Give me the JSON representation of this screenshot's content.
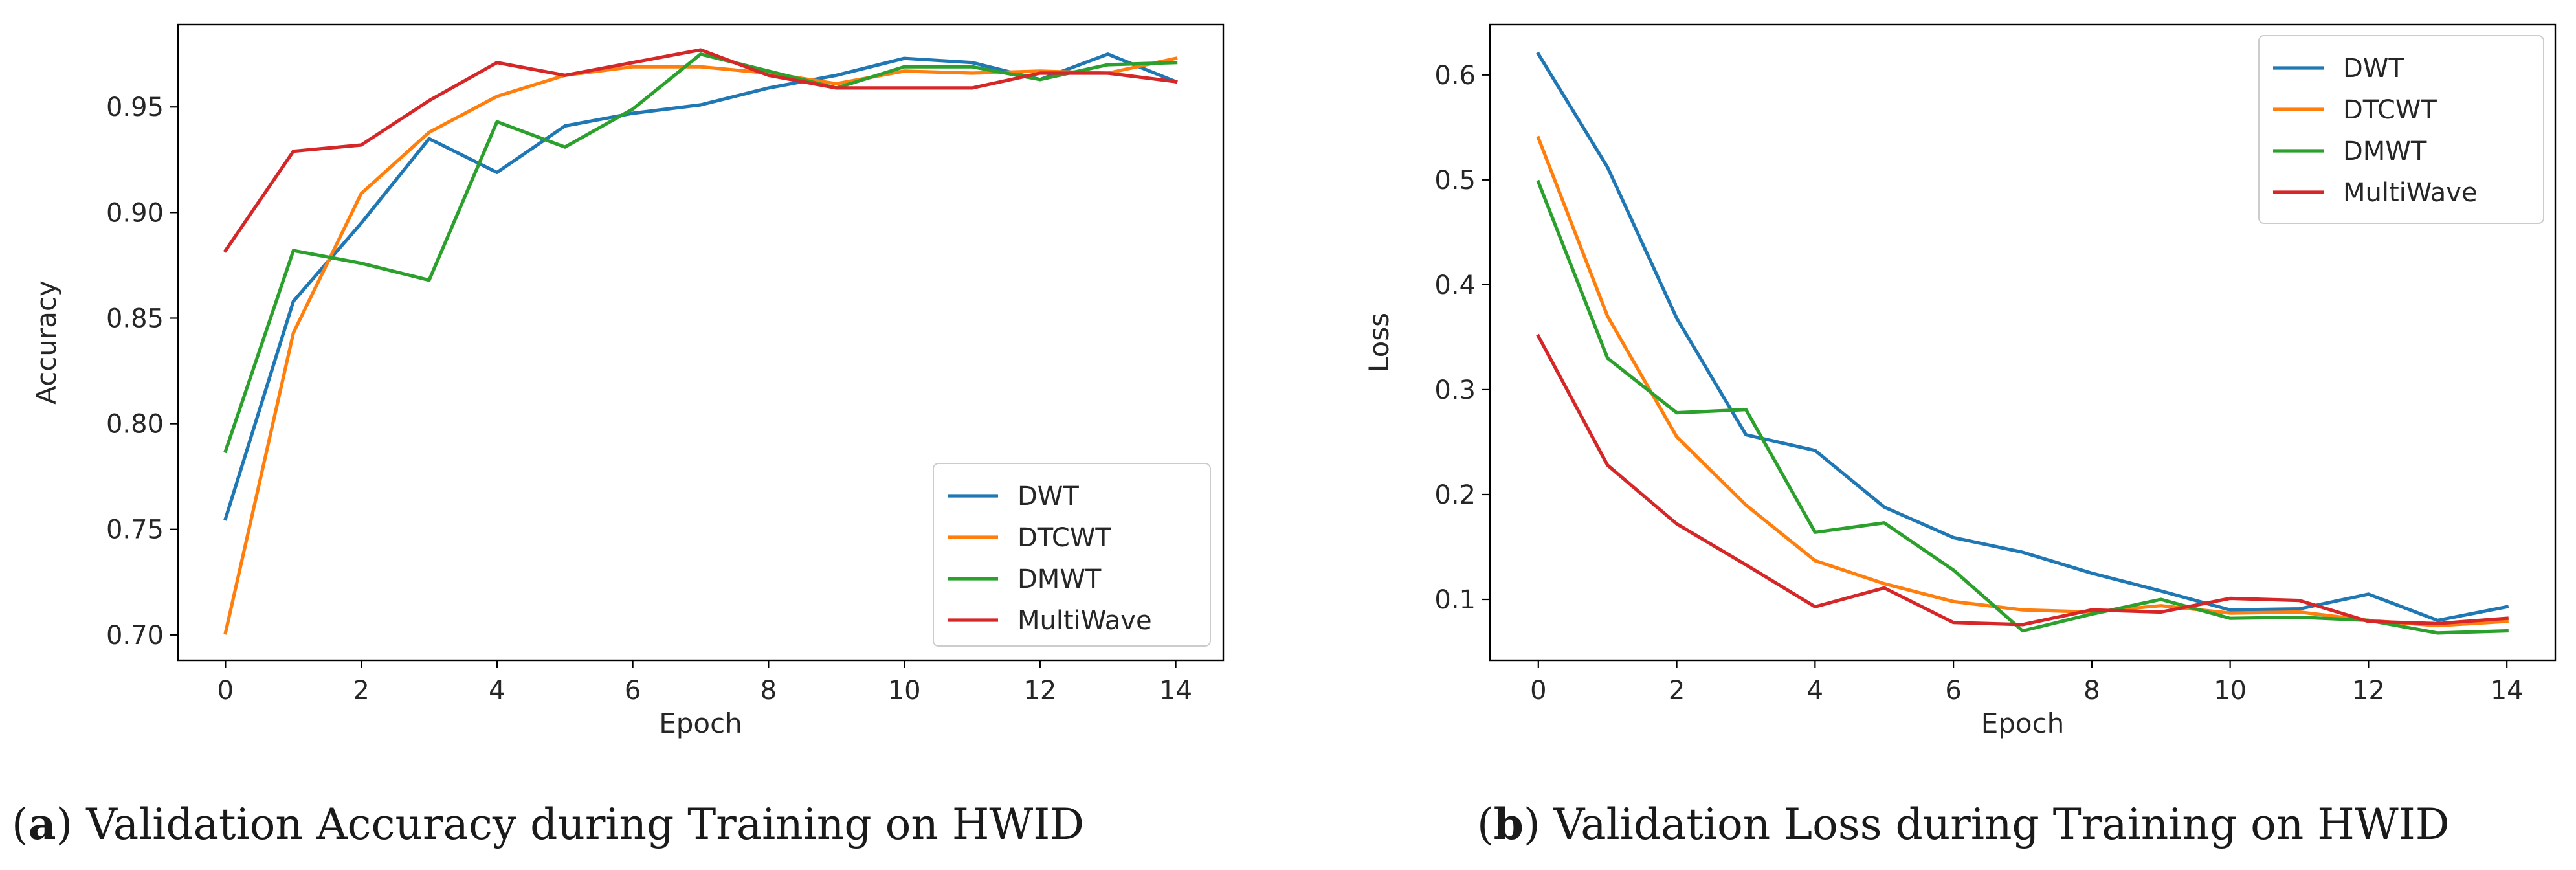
{
  "chart_data": [
    {
      "type": "line",
      "panel": "a",
      "caption_letter": "a",
      "caption_text": "Validation Accuracy during Training on HWID",
      "xlabel": "Epoch",
      "ylabel": "Accuracy",
      "xlim": [
        -0.7,
        14.7
      ],
      "ylim": [
        0.688,
        0.989
      ],
      "xticks": [
        0,
        2,
        4,
        6,
        8,
        10,
        12,
        14
      ],
      "yticks": [
        0.7,
        0.75,
        0.8,
        0.85,
        0.9,
        0.95
      ],
      "ytick_labels": [
        "0.70",
        "0.75",
        "0.80",
        "0.85",
        "0.90",
        "0.95"
      ],
      "legend_position": "lower right",
      "x": [
        0,
        1,
        2,
        3,
        4,
        5,
        6,
        7,
        8,
        9,
        10,
        11,
        12,
        13,
        14
      ],
      "series": [
        {
          "name": "DWT",
          "color": "#1f77b4",
          "values": [
            0.755,
            0.858,
            0.895,
            0.935,
            0.919,
            0.941,
            0.947,
            0.951,
            0.959,
            0.965,
            0.973,
            0.971,
            0.963,
            0.975,
            0.962
          ]
        },
        {
          "name": "DTCWT",
          "color": "#ff7f0e",
          "values": [
            0.701,
            0.843,
            0.909,
            0.938,
            0.955,
            0.965,
            0.969,
            0.969,
            0.966,
            0.961,
            0.967,
            0.966,
            0.967,
            0.966,
            0.973
          ]
        },
        {
          "name": "DMWT",
          "color": "#2ca02c",
          "values": [
            0.787,
            0.882,
            0.876,
            0.868,
            0.943,
            0.931,
            0.949,
            0.975,
            0.967,
            0.959,
            0.969,
            0.969,
            0.963,
            0.97,
            0.971
          ]
        },
        {
          "name": "MultiWave",
          "color": "#d62728",
          "values": [
            0.882,
            0.929,
            0.932,
            0.953,
            0.971,
            0.965,
            0.971,
            0.977,
            0.965,
            0.959,
            0.959,
            0.959,
            0.966,
            0.966,
            0.962
          ]
        }
      ]
    },
    {
      "type": "line",
      "panel": "b",
      "caption_letter": "b",
      "caption_text": "Validation Loss during Training on HWID",
      "xlabel": "Epoch",
      "ylabel": "Loss",
      "xlim": [
        -0.7,
        14.7
      ],
      "ylim": [
        0.042,
        0.648
      ],
      "xticks": [
        0,
        2,
        4,
        6,
        8,
        10,
        12,
        14
      ],
      "yticks": [
        0.1,
        0.2,
        0.3,
        0.4,
        0.5,
        0.6
      ],
      "ytick_labels": [
        "0.1",
        "0.2",
        "0.3",
        "0.4",
        "0.5",
        "0.6"
      ],
      "legend_position": "upper right",
      "x": [
        0,
        1,
        2,
        3,
        4,
        5,
        6,
        7,
        8,
        9,
        10,
        11,
        12,
        13,
        14
      ],
      "series": [
        {
          "name": "DWT",
          "color": "#1f77b4",
          "values": [
            0.62,
            0.512,
            0.368,
            0.257,
            0.242,
            0.188,
            0.159,
            0.145,
            0.125,
            0.108,
            0.09,
            0.091,
            0.105,
            0.08,
            0.093
          ]
        },
        {
          "name": "DTCWT",
          "color": "#ff7f0e",
          "values": [
            0.54,
            0.37,
            0.255,
            0.19,
            0.137,
            0.115,
            0.098,
            0.09,
            0.088,
            0.094,
            0.087,
            0.088,
            0.08,
            0.075,
            0.079
          ]
        },
        {
          "name": "DMWT",
          "color": "#2ca02c",
          "values": [
            0.498,
            0.33,
            0.278,
            0.281,
            0.164,
            0.173,
            0.128,
            0.07,
            0.086,
            0.1,
            0.082,
            0.083,
            0.08,
            0.068,
            0.07
          ]
        },
        {
          "name": "MultiWave",
          "color": "#d62728",
          "values": [
            0.351,
            0.228,
            0.172,
            0.133,
            0.093,
            0.111,
            0.078,
            0.076,
            0.09,
            0.088,
            0.101,
            0.099,
            0.079,
            0.077,
            0.082
          ]
        }
      ]
    }
  ]
}
